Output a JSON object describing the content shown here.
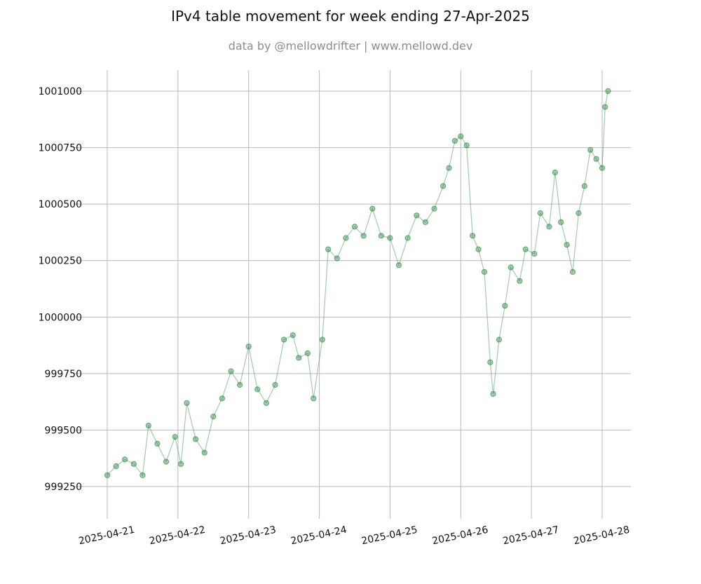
{
  "chart_data": {
    "type": "line",
    "title": "IPv4 table movement for week ending 27-Apr-2025",
    "subtitle": "data by @mellowdrifter | www.mellowd.dev",
    "xlabel": "",
    "ylabel": "",
    "ylim": [
      999150,
      1001095
    ],
    "x_ticks": [
      "2025-04-21",
      "2025-04-22",
      "2025-04-23",
      "2025-04-24",
      "2025-04-25",
      "2025-04-26",
      "2025-04-27",
      "2025-04-28"
    ],
    "y_ticks": [
      999250,
      999500,
      999750,
      1000000,
      1000250,
      1000500,
      1000750,
      1001000
    ],
    "grid": true,
    "series_color": "#2e8b45",
    "series": [
      {
        "name": "",
        "points": [
          [
            "2025-04-21T00:00",
            999300
          ],
          [
            "2025-04-21T03:00",
            999340
          ],
          [
            "2025-04-21T06:00",
            999370
          ],
          [
            "2025-04-21T09:00",
            999350
          ],
          [
            "2025-04-21T12:00",
            999300
          ],
          [
            "2025-04-21T14:00",
            999520
          ],
          [
            "2025-04-21T17:00",
            999440
          ],
          [
            "2025-04-21T20:00",
            999360
          ],
          [
            "2025-04-21T23:00",
            999470
          ],
          [
            "2025-04-22T01:00",
            999350
          ],
          [
            "2025-04-22T03:00",
            999620
          ],
          [
            "2025-04-22T06:00",
            999460
          ],
          [
            "2025-04-22T09:00",
            999400
          ],
          [
            "2025-04-22T12:00",
            999560
          ],
          [
            "2025-04-22T15:00",
            999640
          ],
          [
            "2025-04-22T18:00",
            999760
          ],
          [
            "2025-04-22T21:00",
            999700
          ],
          [
            "2025-04-23T00:00",
            999870
          ],
          [
            "2025-04-23T03:00",
            999680
          ],
          [
            "2025-04-23T06:00",
            999620
          ],
          [
            "2025-04-23T09:00",
            999700
          ],
          [
            "2025-04-23T12:00",
            999900
          ],
          [
            "2025-04-23T15:00",
            999920
          ],
          [
            "2025-04-23T17:00",
            999820
          ],
          [
            "2025-04-23T20:00",
            999840
          ],
          [
            "2025-04-23T22:00",
            999640
          ],
          [
            "2025-04-24T01:00",
            999900
          ],
          [
            "2025-04-24T03:00",
            1000300
          ],
          [
            "2025-04-24T06:00",
            1000260
          ],
          [
            "2025-04-24T09:00",
            1000350
          ],
          [
            "2025-04-24T12:00",
            1000400
          ],
          [
            "2025-04-24T15:00",
            1000360
          ],
          [
            "2025-04-24T18:00",
            1000480
          ],
          [
            "2025-04-24T21:00",
            1000360
          ],
          [
            "2025-04-25T00:00",
            1000350
          ],
          [
            "2025-04-25T03:00",
            1000230
          ],
          [
            "2025-04-25T06:00",
            1000350
          ],
          [
            "2025-04-25T09:00",
            1000450
          ],
          [
            "2025-04-25T12:00",
            1000420
          ],
          [
            "2025-04-25T15:00",
            1000480
          ],
          [
            "2025-04-25T18:00",
            1000580
          ],
          [
            "2025-04-25T20:00",
            1000660
          ],
          [
            "2025-04-25T22:00",
            1000780
          ],
          [
            "2025-04-26T00:00",
            1000800
          ],
          [
            "2025-04-26T02:00",
            1000760
          ],
          [
            "2025-04-26T04:00",
            1000360
          ],
          [
            "2025-04-26T06:00",
            1000300
          ],
          [
            "2025-04-26T08:00",
            1000200
          ],
          [
            "2025-04-26T10:00",
            999800
          ],
          [
            "2025-04-26T11:00",
            999660
          ],
          [
            "2025-04-26T13:00",
            999900
          ],
          [
            "2025-04-26T15:00",
            1000050
          ],
          [
            "2025-04-26T17:00",
            1000220
          ],
          [
            "2025-04-26T20:00",
            1000160
          ],
          [
            "2025-04-26T22:00",
            1000300
          ],
          [
            "2025-04-27T01:00",
            1000280
          ],
          [
            "2025-04-27T03:00",
            1000460
          ],
          [
            "2025-04-27T06:00",
            1000400
          ],
          [
            "2025-04-27T08:00",
            1000640
          ],
          [
            "2025-04-27T10:00",
            1000420
          ],
          [
            "2025-04-27T12:00",
            1000320
          ],
          [
            "2025-04-27T14:00",
            1000200
          ],
          [
            "2025-04-27T16:00",
            1000460
          ],
          [
            "2025-04-27T18:00",
            1000580
          ],
          [
            "2025-04-27T20:00",
            1000740
          ],
          [
            "2025-04-27T22:00",
            1000700
          ],
          [
            "2025-04-28T00:00",
            1000660
          ],
          [
            "2025-04-28T01:00",
            1000930
          ],
          [
            "2025-04-28T02:00",
            1001000
          ]
        ]
      }
    ]
  }
}
